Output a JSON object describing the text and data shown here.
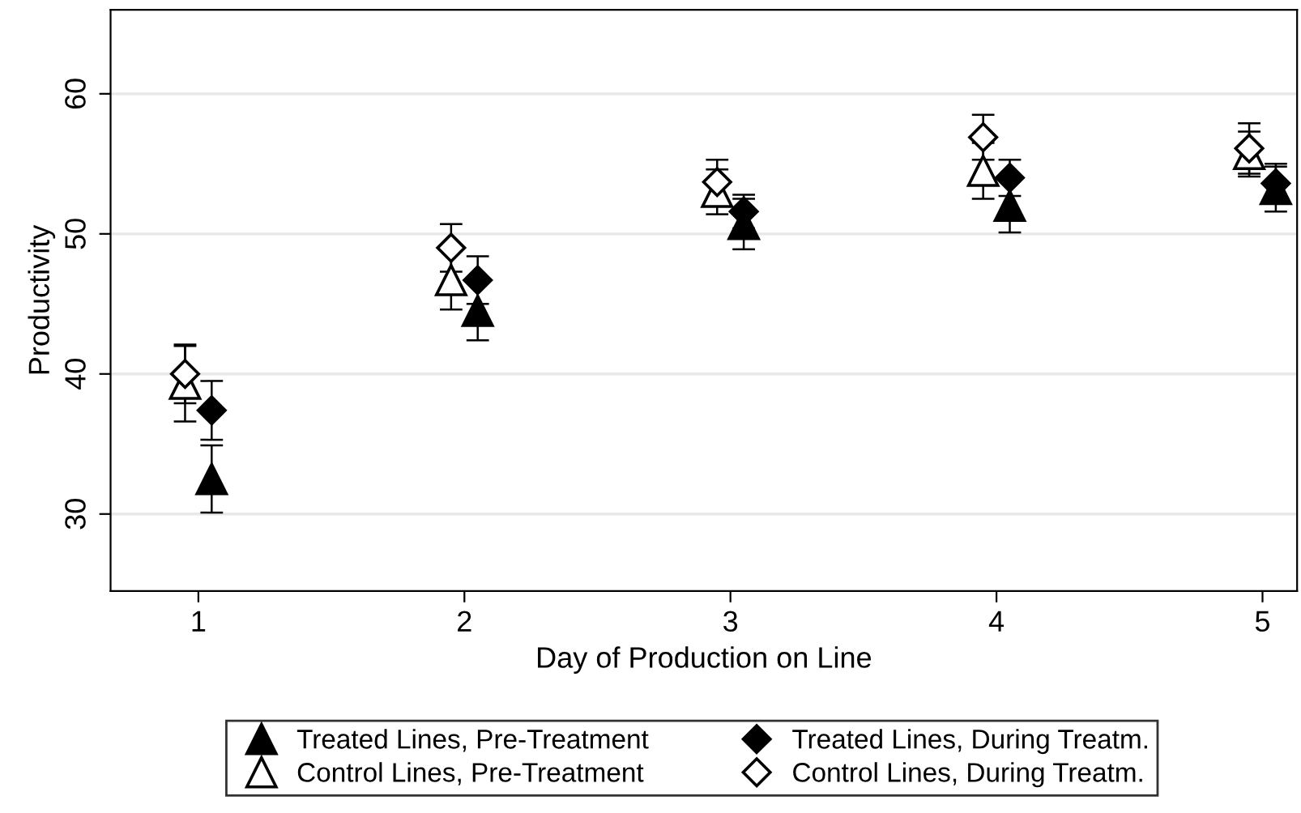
{
  "chart_data": {
    "type": "scatter",
    "xlabel": "Day of Production on Line",
    "ylabel": "Productivity",
    "xlim": [
      0.67,
      5.13
    ],
    "xticks": [
      1,
      2,
      3,
      4,
      5
    ],
    "ylim": [
      24.5,
      66
    ],
    "yticks": [
      30,
      40,
      50,
      60
    ],
    "grid": "y",
    "legend": "bottom",
    "series": [
      {
        "name": "Treated Lines, Pre-Treatment",
        "marker": "triangle",
        "color": "#000000",
        "x": [
          1.05,
          2.05,
          3.05,
          4.05,
          5.05
        ],
        "values": [
          32.5,
          44.5,
          50.7,
          52.0,
          53.2
        ],
        "errors": [
          2.4,
          2.1,
          1.8,
          1.9,
          1.6
        ]
      },
      {
        "name": "Treated Lines, During Treatm.",
        "marker": "diamond",
        "color": "#000000",
        "x": [
          1.05,
          2.05,
          3.05,
          4.05,
          5.05
        ],
        "values": [
          37.4,
          46.7,
          51.6,
          54.0,
          53.6
        ],
        "errors": [
          2.1,
          1.7,
          1.2,
          1.3,
          1.4
        ]
      },
      {
        "name": "Control Lines, Pre-Treatment",
        "marker": "triangle",
        "color": "#ffffff",
        "x": [
          0.95,
          1.95,
          2.95,
          3.95,
          4.95
        ],
        "values": [
          39.3,
          46.7,
          53.0,
          54.5,
          55.7
        ],
        "errors": [
          2.7,
          2.1,
          1.6,
          2.0,
          1.6
        ]
      },
      {
        "name": "Control Lines, During Treatm.",
        "marker": "diamond",
        "color": "#ffffff",
        "x": [
          0.95,
          1.95,
          2.95,
          3.95,
          4.95
        ],
        "values": [
          40.0,
          49.0,
          53.7,
          56.9,
          56.1
        ],
        "errors": [
          2.1,
          1.7,
          1.6,
          1.6,
          1.8
        ]
      }
    ]
  }
}
